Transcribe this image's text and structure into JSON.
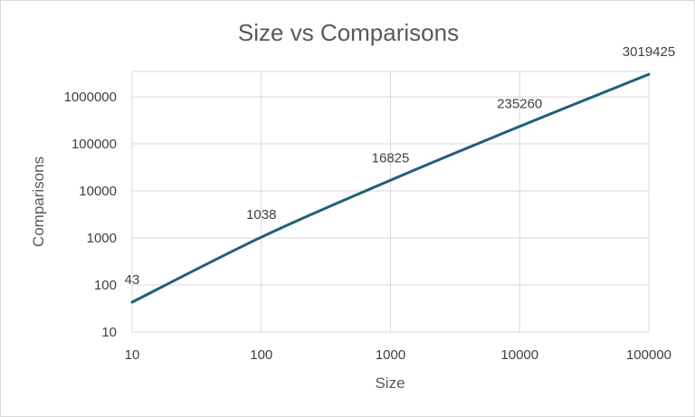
{
  "chart_data": {
    "type": "line",
    "title": "Size vs Comparisons",
    "xlabel": "Size",
    "ylabel": "Comparisons",
    "x_scale": "log",
    "y_scale": "log",
    "xlim": [
      10,
      100000
    ],
    "ylim": [
      10,
      1000000
    ],
    "x_ticks": [
      "10",
      "100",
      "1000",
      "10000",
      "100000"
    ],
    "y_ticks": [
      "10",
      "100",
      "1000",
      "10000",
      "100000",
      "1000000"
    ],
    "grid": true,
    "legend": "none",
    "line_color": "#1f5f7a",
    "series": [
      {
        "x": [
          10,
          100,
          1000,
          10000,
          100000
        ],
        "values": [
          43,
          1038,
          16825,
          235260,
          3019425
        ],
        "labels": [
          "43",
          "1038",
          "16825",
          "235260",
          "3019425"
        ]
      }
    ]
  }
}
